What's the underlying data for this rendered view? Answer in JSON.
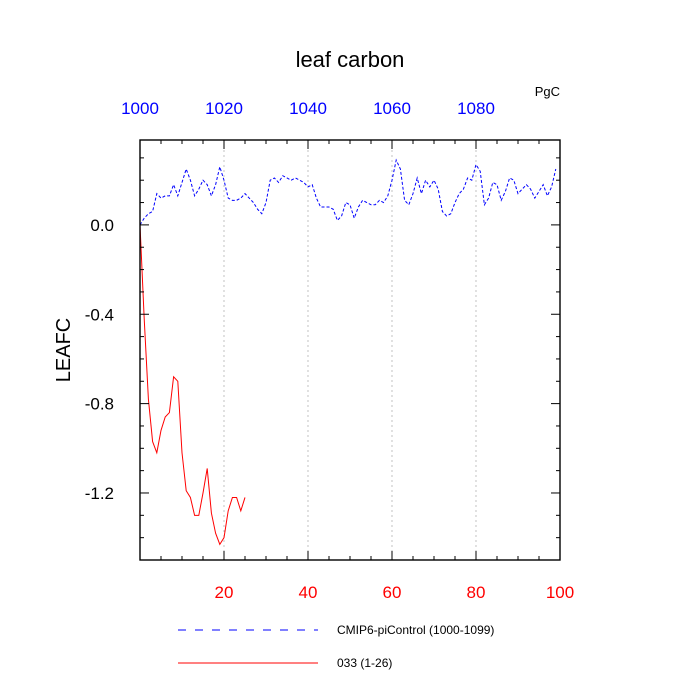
{
  "chart_data": {
    "type": "line",
    "title": "leaf carbon",
    "ylabel": "LEAFC",
    "units": "PgC",
    "x_bottom": {
      "range": [
        0,
        100
      ],
      "ticks": [
        20,
        40,
        60,
        80,
        100
      ],
      "color": "#ff0000"
    },
    "x_top": {
      "range": [
        1000,
        1100
      ],
      "ticks": [
        1000,
        1020,
        1040,
        1060,
        1080
      ],
      "color": "#0000ff"
    },
    "y": {
      "range": [
        -1.5,
        0.38
      ],
      "ticks": [
        -1.2,
        -0.8,
        -0.4,
        0.0
      ],
      "tick_labels": [
        "-1.2",
        "-0.8",
        "-0.4",
        "0.0"
      ]
    },
    "grid_x": true,
    "series": [
      {
        "name": "CMIP6-piControl (1000-1099)",
        "axis": "top",
        "color": "#0000ff",
        "dash": "dashed",
        "x": [
          1000,
          1001,
          1002,
          1003,
          1004,
          1005,
          1006,
          1007,
          1008,
          1009,
          1010,
          1011,
          1012,
          1013,
          1014,
          1015,
          1016,
          1017,
          1018,
          1019,
          1020,
          1021,
          1022,
          1023,
          1024,
          1025,
          1026,
          1027,
          1028,
          1029,
          1030,
          1031,
          1032,
          1033,
          1034,
          1035,
          1036,
          1037,
          1038,
          1039,
          1040,
          1041,
          1042,
          1043,
          1044,
          1045,
          1046,
          1047,
          1048,
          1049,
          1050,
          1051,
          1052,
          1053,
          1054,
          1055,
          1056,
          1057,
          1058,
          1059,
          1060,
          1061,
          1062,
          1063,
          1064,
          1065,
          1066,
          1067,
          1068,
          1069,
          1070,
          1071,
          1072,
          1073,
          1074,
          1075,
          1076,
          1077,
          1078,
          1079,
          1080,
          1081,
          1082,
          1083,
          1084,
          1085,
          1086,
          1087,
          1088,
          1089,
          1090,
          1091,
          1092,
          1093,
          1094,
          1095,
          1096,
          1097,
          1098,
          1099
        ],
        "values": [
          0.0,
          0.03,
          0.05,
          0.06,
          0.14,
          0.12,
          0.13,
          0.13,
          0.18,
          0.13,
          0.19,
          0.25,
          0.2,
          0.13,
          0.16,
          0.2,
          0.18,
          0.13,
          0.18,
          0.26,
          0.2,
          0.12,
          0.11,
          0.11,
          0.12,
          0.14,
          0.12,
          0.1,
          0.07,
          0.05,
          0.1,
          0.2,
          0.21,
          0.19,
          0.22,
          0.21,
          0.2,
          0.21,
          0.2,
          0.19,
          0.17,
          0.18,
          0.12,
          0.08,
          0.08,
          0.08,
          0.07,
          0.02,
          0.04,
          0.1,
          0.09,
          0.03,
          0.08,
          0.11,
          0.1,
          0.09,
          0.09,
          0.11,
          0.1,
          0.13,
          0.2,
          0.29,
          0.25,
          0.11,
          0.09,
          0.14,
          0.21,
          0.14,
          0.2,
          0.17,
          0.2,
          0.16,
          0.06,
          0.04,
          0.05,
          0.1,
          0.14,
          0.16,
          0.21,
          0.2,
          0.27,
          0.24,
          0.09,
          0.12,
          0.19,
          0.18,
          0.11,
          0.15,
          0.21,
          0.2,
          0.14,
          0.16,
          0.18,
          0.16,
          0.12,
          0.15,
          0.18,
          0.13,
          0.17,
          0.25
        ]
      },
      {
        "name": "033 (1-26)",
        "axis": "bottom",
        "color": "#ff0000",
        "dash": "solid",
        "x": [
          0,
          1,
          2,
          3,
          4,
          5,
          6,
          7,
          8,
          9,
          10,
          11,
          12,
          13,
          14,
          15,
          16,
          17,
          18,
          19,
          20,
          21,
          22,
          23,
          24,
          25,
          26
        ],
        "values": [
          0.0,
          -0.42,
          -0.78,
          -0.97,
          -1.02,
          -0.92,
          -0.86,
          -0.84,
          -0.68,
          -0.7,
          -1.02,
          -1.19,
          -1.22,
          -1.3,
          -1.3,
          -1.2,
          -1.09,
          -1.29,
          -1.38,
          -1.43,
          -1.4,
          -1.28,
          -1.22,
          -1.22,
          -1.28,
          -1.22,
          null
        ]
      }
    ],
    "legend": {
      "placement": "bottom",
      "entries": [
        {
          "label": "CMIP6-piControl (1000-1099)",
          "color": "#0000ff",
          "dash": "dashed"
        },
        {
          "label": "033 (1-26)",
          "color": "#ff0000",
          "dash": "solid"
        }
      ]
    }
  }
}
